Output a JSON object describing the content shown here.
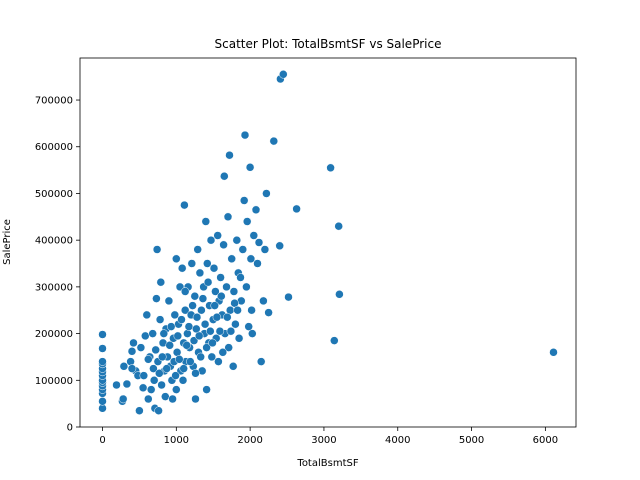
{
  "chart_data": {
    "type": "scatter",
    "title": "Scatter Plot: TotalBsmtSF vs SalePrice",
    "xlabel": "TotalBsmtSF",
    "ylabel": "SalePrice",
    "xlim": [
      -305,
      6415
    ],
    "ylim": [
      0,
      790000
    ],
    "xticks": [
      0,
      1000,
      2000,
      3000,
      4000,
      5000,
      6000
    ],
    "yticks": [
      0,
      100000,
      200000,
      300000,
      400000,
      500000,
      600000,
      700000
    ],
    "xtick_labels": [
      "0",
      "1000",
      "2000",
      "3000",
      "4000",
      "5000",
      "6000"
    ],
    "ytick_labels": [
      "0",
      "100000",
      "200000",
      "300000",
      "400000",
      "500000",
      "600000",
      "700000"
    ],
    "grid": false,
    "marker_color": "#1f77b4",
    "series": [
      {
        "points": [
          [
            0,
            40000
          ],
          [
            0,
            55000
          ],
          [
            0,
            72000
          ],
          [
            0,
            80000
          ],
          [
            0,
            88000
          ],
          [
            0,
            95000
          ],
          [
            0,
            100000
          ],
          [
            0,
            110000
          ],
          [
            0,
            118000
          ],
          [
            0,
            125000
          ],
          [
            0,
            135000
          ],
          [
            0,
            140000
          ],
          [
            0,
            168000
          ],
          [
            0,
            198000
          ],
          [
            190,
            90000
          ],
          [
            270,
            55000
          ],
          [
            280,
            60000
          ],
          [
            290,
            130000
          ],
          [
            330,
            92000
          ],
          [
            380,
            140000
          ],
          [
            400,
            162000
          ],
          [
            420,
            180000
          ],
          [
            450,
            120000
          ],
          [
            480,
            110000
          ],
          [
            500,
            35000
          ],
          [
            520,
            170000
          ],
          [
            550,
            84000
          ],
          [
            580,
            195000
          ],
          [
            600,
            240000
          ],
          [
            620,
            60000
          ],
          [
            640,
            150000
          ],
          [
            660,
            80000
          ],
          [
            680,
            200000
          ],
          [
            700,
            100000
          ],
          [
            710,
            40000
          ],
          [
            730,
            275000
          ],
          [
            740,
            380000
          ],
          [
            750,
            140000
          ],
          [
            760,
            35000
          ],
          [
            780,
            230000
          ],
          [
            790,
            310000
          ],
          [
            800,
            90000
          ],
          [
            820,
            180000
          ],
          [
            840,
            120000
          ],
          [
            850,
            65000
          ],
          [
            860,
            210000
          ],
          [
            880,
            150000
          ],
          [
            900,
            270000
          ],
          [
            920,
            130000
          ],
          [
            940,
            100000
          ],
          [
            950,
            60000
          ],
          [
            960,
            190000
          ],
          [
            980,
            240000
          ],
          [
            1000,
            360000
          ],
          [
            1000,
            80000
          ],
          [
            1010,
            160000
          ],
          [
            1030,
            220000
          ],
          [
            1050,
            300000
          ],
          [
            1060,
            120000
          ],
          [
            1080,
            340000
          ],
          [
            1090,
            100000
          ],
          [
            1100,
            180000
          ],
          [
            1110,
            475000
          ],
          [
            1120,
            250000
          ],
          [
            1130,
            140000
          ],
          [
            1150,
            200000
          ],
          [
            1160,
            300000
          ],
          [
            1180,
            170000
          ],
          [
            1200,
            240000
          ],
          [
            1210,
            350000
          ],
          [
            1230,
            130000
          ],
          [
            1250,
            280000
          ],
          [
            1260,
            60000
          ],
          [
            1270,
            210000
          ],
          [
            1290,
            380000
          ],
          [
            1300,
            160000
          ],
          [
            1320,
            330000
          ],
          [
            1340,
            250000
          ],
          [
            1350,
            120000
          ],
          [
            1370,
            300000
          ],
          [
            1380,
            200000
          ],
          [
            1400,
            440000
          ],
          [
            1410,
            80000
          ],
          [
            1420,
            350000
          ],
          [
            1440,
            180000
          ],
          [
            1450,
            260000
          ],
          [
            1470,
            400000
          ],
          [
            1480,
            150000
          ],
          [
            1500,
            230000
          ],
          [
            1510,
            340000
          ],
          [
            1530,
            290000
          ],
          [
            1540,
            190000
          ],
          [
            1560,
            410000
          ],
          [
            1570,
            140000
          ],
          [
            1580,
            270000
          ],
          [
            1600,
            320000
          ],
          [
            1620,
            240000
          ],
          [
            1640,
            390000
          ],
          [
            1650,
            537000
          ],
          [
            1660,
            200000
          ],
          [
            1680,
            300000
          ],
          [
            1700,
            450000
          ],
          [
            1710,
            170000
          ],
          [
            1720,
            582000
          ],
          [
            1730,
            250000
          ],
          [
            1750,
            360000
          ],
          [
            1770,
            130000
          ],
          [
            1780,
            290000
          ],
          [
            1800,
            220000
          ],
          [
            1820,
            400000
          ],
          [
            1840,
            330000
          ],
          [
            1850,
            190000
          ],
          [
            1880,
            270000
          ],
          [
            1900,
            380000
          ],
          [
            1920,
            485000
          ],
          [
            1930,
            625000
          ],
          [
            1950,
            300000
          ],
          [
            1960,
            440000
          ],
          [
            2000,
            556000
          ],
          [
            2010,
            360000
          ],
          [
            2020,
            250000
          ],
          [
            2050,
            410000
          ],
          [
            2080,
            465000
          ],
          [
            2100,
            350000
          ],
          [
            2150,
            140000
          ],
          [
            2180,
            270000
          ],
          [
            2200,
            380000
          ],
          [
            2220,
            500000
          ],
          [
            2250,
            245000
          ],
          [
            2320,
            612000
          ],
          [
            2400,
            388000
          ],
          [
            2410,
            745000
          ],
          [
            2450,
            755000
          ],
          [
            2520,
            278000
          ],
          [
            2630,
            467000
          ],
          [
            3090,
            555000
          ],
          [
            3140,
            185000
          ],
          [
            3200,
            430000
          ],
          [
            3210,
            284000
          ],
          [
            6110,
            160000
          ],
          [
            400,
            125000
          ],
          [
            560,
            110000
          ],
          [
            620,
            145000
          ],
          [
            690,
            125000
          ],
          [
            720,
            165000
          ],
          [
            770,
            115000
          ],
          [
            810,
            150000
          ],
          [
            830,
            200000
          ],
          [
            870,
            125000
          ],
          [
            910,
            175000
          ],
          [
            930,
            215000
          ],
          [
            970,
            140000
          ],
          [
            990,
            110000
          ],
          [
            1020,
            195000
          ],
          [
            1040,
            145000
          ],
          [
            1070,
            230000
          ],
          [
            1100,
            125000
          ],
          [
            1120,
            290000
          ],
          [
            1140,
            175000
          ],
          [
            1170,
            215000
          ],
          [
            1190,
            140000
          ],
          [
            1220,
            260000
          ],
          [
            1240,
            185000
          ],
          [
            1260,
            115000
          ],
          [
            1280,
            235000
          ],
          [
            1310,
            195000
          ],
          [
            1330,
            150000
          ],
          [
            1360,
            275000
          ],
          [
            1390,
            220000
          ],
          [
            1410,
            170000
          ],
          [
            1430,
            310000
          ],
          [
            1460,
            205000
          ],
          [
            1490,
            180000
          ],
          [
            1520,
            260000
          ],
          [
            1550,
            235000
          ],
          [
            1590,
            205000
          ],
          [
            1610,
            280000
          ],
          [
            1630,
            160000
          ],
          [
            1690,
            235000
          ],
          [
            1740,
            205000
          ],
          [
            1790,
            265000
          ],
          [
            1830,
            250000
          ],
          [
            1870,
            320000
          ],
          [
            1980,
            215000
          ],
          [
            2030,
            200000
          ],
          [
            2120,
            395000
          ]
        ]
      }
    ]
  }
}
